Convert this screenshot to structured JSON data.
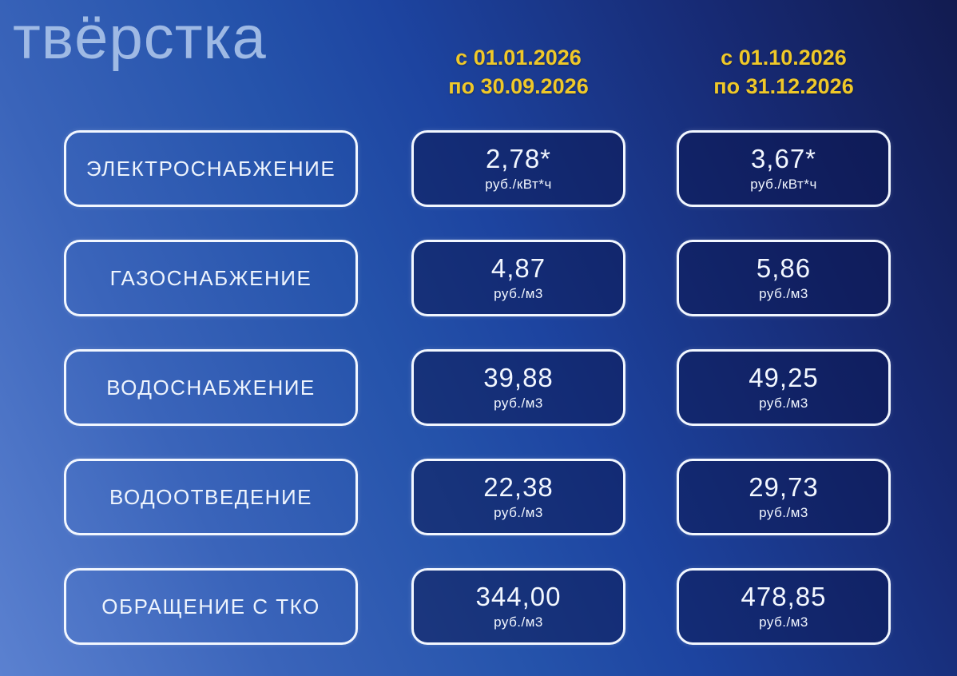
{
  "watermark": "твёрстка",
  "columns": [
    {
      "line1": "с 01.01.2026",
      "line2": "по 30.09.2026"
    },
    {
      "line1": "с 01.10.2026",
      "line2": "по 31.12.2026"
    }
  ],
  "rows": [
    {
      "label": "ЭЛЕКТРОСНАБЖЕНИЕ",
      "period1": {
        "value": "2,78*",
        "unit": "руб./кВт*ч"
      },
      "period2": {
        "value": "3,67*",
        "unit": "руб./кВт*ч"
      }
    },
    {
      "label": "ГАЗОСНАБЖЕНИЕ",
      "period1": {
        "value": "4,87",
        "unit": "руб./м3"
      },
      "period2": {
        "value": "5,86",
        "unit": "руб./м3"
      }
    },
    {
      "label": "ВОДОСНАБЖЕНИЕ",
      "period1": {
        "value": "39,88",
        "unit": "руб./м3"
      },
      "period2": {
        "value": "49,25",
        "unit": "руб./м3"
      }
    },
    {
      "label": "ВОДООТВЕДЕНИЕ",
      "period1": {
        "value": "22,38",
        "unit": "руб./м3"
      },
      "period2": {
        "value": "29,73",
        "unit": "руб./м3"
      }
    },
    {
      "label": "ОБРАЩЕНИЕ С ТКО",
      "period1": {
        "value": "344,00",
        "unit": "руб./м3"
      },
      "period2": {
        "value": "478,85",
        "unit": "руб./м3"
      }
    }
  ],
  "colors": {
    "header_text": "#efc829",
    "box_border": "#f2f7ff",
    "body_text": "#f2f7ff",
    "bg_light": "#5b81d0",
    "bg_dark": "#121b50",
    "box_fill": "rgba(9,20,76,0.5)",
    "watermark": "#a9c2e9"
  },
  "chart_data": {
    "type": "table",
    "title": "",
    "column_headers": [
      "",
      "с 01.01.2026 по 30.09.2026",
      "с 01.10.2026 по 31.12.2026"
    ],
    "rows": [
      {
        "category": "ЭЛЕКТРОСНАБЖЕНИЕ",
        "values": [
          2.78,
          3.67
        ],
        "value_labels": [
          "2,78*",
          "3,67*"
        ],
        "unit": "руб./кВт*ч"
      },
      {
        "category": "ГАЗОСНАБЖЕНИЕ",
        "values": [
          4.87,
          5.86
        ],
        "value_labels": [
          "4,87",
          "5,86"
        ],
        "unit": "руб./м3"
      },
      {
        "category": "ВОДОСНАБЖЕНИЕ",
        "values": [
          39.88,
          49.25
        ],
        "value_labels": [
          "39,88",
          "49,25"
        ],
        "unit": "руб./м3"
      },
      {
        "category": "ВОДООТВЕДЕНИЕ",
        "values": [
          22.38,
          29.73
        ],
        "value_labels": [
          "22,38",
          "29,73"
        ],
        "unit": "руб./м3"
      },
      {
        "category": "ОБРАЩЕНИЕ С ТКО",
        "values": [
          344.0,
          478.85
        ],
        "value_labels": [
          "344,00",
          "478,85"
        ],
        "unit": "руб./м3"
      }
    ]
  }
}
